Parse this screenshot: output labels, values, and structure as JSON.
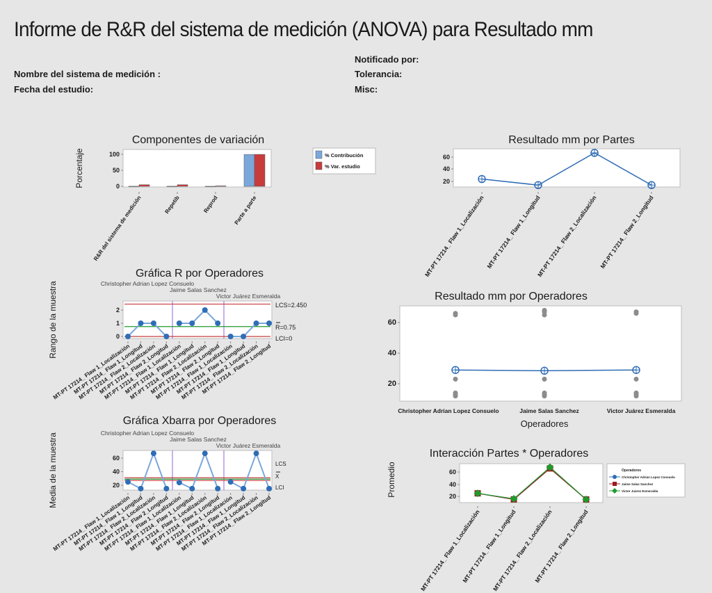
{
  "header": {
    "title": "Informe de R&R del sistema de medición  (ANOVA) para Resultado mm",
    "notificado_label": "Notificado por:",
    "nombre_label": "Nombre del sistema de medición :",
    "tolerancia_label": "Tolerancia:",
    "fecha_label": "Fecha del estudio:",
    "misc_label": "Misc:"
  },
  "colors": {
    "blue": "#2f6db5",
    "light_blue": "#7ba7db",
    "red": "#c83c3c",
    "dark_red": "#9b1c1c",
    "green": "#1f9a2e",
    "purple": "#a77be0",
    "gray_points": "#8c8c8c"
  },
  "chart_data": [
    {
      "type": "bar",
      "title": "Componentes de variación",
      "ylabel": "Porcentaje",
      "ylim": [
        0,
        100
      ],
      "yticks": [
        "0",
        "50",
        "100"
      ],
      "categories": [
        "R&R del sistema de medición",
        "Repetib",
        "Reprod",
        "Parte a parte"
      ],
      "series": [
        {
          "name": "% Contribución",
          "values": [
            0.3,
            0.3,
            0.1,
            99.7
          ],
          "color": "#7ba7db"
        },
        {
          "name": "% Var. estudio",
          "values": [
            5,
            5,
            1.5,
            99.9
          ],
          "color": "#c83c3c"
        }
      ],
      "legend": "right"
    },
    {
      "type": "line",
      "title": "Resultado mm por Partes",
      "yticks": [
        "20",
        "40",
        "60"
      ],
      "categories": [
        "MT-PT 17214_ Flaw 1_Localización",
        "MT-PT 17214_ Flaw 1_Longitud",
        "MT-PT 17214_ Flaw 2_Localización",
        "MT-PT 17214_ Flaw 2_Longitud"
      ],
      "values": [
        24,
        14,
        67,
        14
      ]
    },
    {
      "type": "line",
      "title": "Gráfica R por Operadores",
      "ylabel": "Rango de la muestra",
      "yticks": [
        "0",
        "1",
        "2"
      ],
      "operators": [
        "Christopher Adrian Lopez Consuelo",
        "Jaime Salas Sanchez",
        "Victor Juárez Esmeralda"
      ],
      "categories": [
        "MT-PT 17214_ Flaw 1_Localización",
        "MT-PT 17214_ Flaw 1_Longitud",
        "MT-PT 17214_ Flaw 2_Localización",
        "MT-PT 17214_ Flaw 2_Longitud",
        "MT-PT 17214_ Flaw 1_Localización",
        "MT-PT 17214_ Flaw 1_Longitud",
        "MT-PT 17214_ Flaw 2_Localización",
        "MT-PT 17214_ Flaw 2_Longitud",
        "MT-PT 17214_ Flaw 1_Localización",
        "MT-PT 17214_ Flaw 1_Longitud",
        "MT-PT 17214_ Flaw 2_Localización",
        "MT-PT 17214_ Flaw 2_Longitud"
      ],
      "values": [
        0,
        1,
        1,
        0,
        1,
        1,
        2,
        1,
        0,
        0,
        1,
        1
      ],
      "ucl": 2.45,
      "center": 0.75,
      "lcl": 0,
      "ucl_label": "LCS=2.450",
      "center_label": "R=0.75",
      "lcl_label": "LCI=0"
    },
    {
      "type": "line",
      "title": "Gráfica Xbarra por Operadores",
      "ylabel": "Media de la muestra",
      "yticks": [
        "20",
        "40",
        "60"
      ],
      "operators": [
        "Christopher Adrian Lopez Consuelo",
        "Jaime Salas Sanchez",
        "Victor Juárez Esmeralda"
      ],
      "categories": [
        "MT-PT 17214_ Flaw 1_Localización",
        "MT-PT 17214_ Flaw 1_Longitud",
        "MT-PT 17214_ Flaw 2_Localización",
        "MT-PT 17214_ Flaw 2_Longitud",
        "MT-PT 17214_ Flaw 1_Localización",
        "MT-PT 17214_ Flaw 1_Longitud",
        "MT-PT 17214_ Flaw 2_Localización",
        "MT-PT 17214_ Flaw 2_Longitud",
        "MT-PT 17214_ Flaw 1_Localización",
        "MT-PT 17214_ Flaw 1_Longitud",
        "MT-PT 17214_ Flaw 2_Localización",
        "MT-PT 17214_ Flaw 2_Longitud"
      ],
      "values": [
        25,
        15,
        67,
        15,
        24,
        15,
        67,
        15,
        25,
        15,
        67,
        15
      ],
      "ucl": 31,
      "center": 29,
      "lcl": 27,
      "ucl_label": "LCS",
      "center_label": "X",
      "lcl_label": "LCI"
    },
    {
      "type": "scatter",
      "title": "Resultado mm por Operadores",
      "xlabel": "Operadores",
      "yticks": [
        "20",
        "40",
        "60"
      ],
      "categories": [
        "Christopher Adrian Lopez Consuelo",
        "Jaime Salas Sanchez",
        "Victor Juárez Esmeralda"
      ],
      "means": [
        29,
        28.5,
        29
      ],
      "points": [
        [
          12,
          13,
          14,
          23,
          65,
          66
        ],
        [
          12,
          13,
          14,
          23,
          65,
          67,
          68
        ],
        [
          12,
          13,
          14,
          23,
          66,
          67
        ]
      ]
    },
    {
      "type": "line",
      "title": "Interacción Partes * Operadores",
      "ylabel": "Promedio",
      "yticks": [
        "20",
        "40",
        "60"
      ],
      "legend_title": "Operadores",
      "categories": [
        "MT-PT 17214_ Flaw 1_Localización",
        "MT-PT 17214_ Flaw 1_Longitud",
        "MT-PT 17214_ Flaw 2_Localización",
        "MT-PT 17214_ Flaw 2_Longitud"
      ],
      "series": [
        {
          "name": "Christopher Adrian Lopez Consuelo",
          "values": [
            25,
            15,
            66,
            15
          ],
          "color": "#2f6db5",
          "marker": "circle"
        },
        {
          "name": "Jaime Salas Sanchez",
          "values": [
            25,
            15,
            66,
            15
          ],
          "color": "#9b1c1c",
          "marker": "square"
        },
        {
          "name": "Victor Juárez Esmeralda",
          "values": [
            25,
            16,
            68,
            15
          ],
          "color": "#1f9a2e",
          "marker": "diamond"
        }
      ],
      "legend": "right"
    }
  ]
}
